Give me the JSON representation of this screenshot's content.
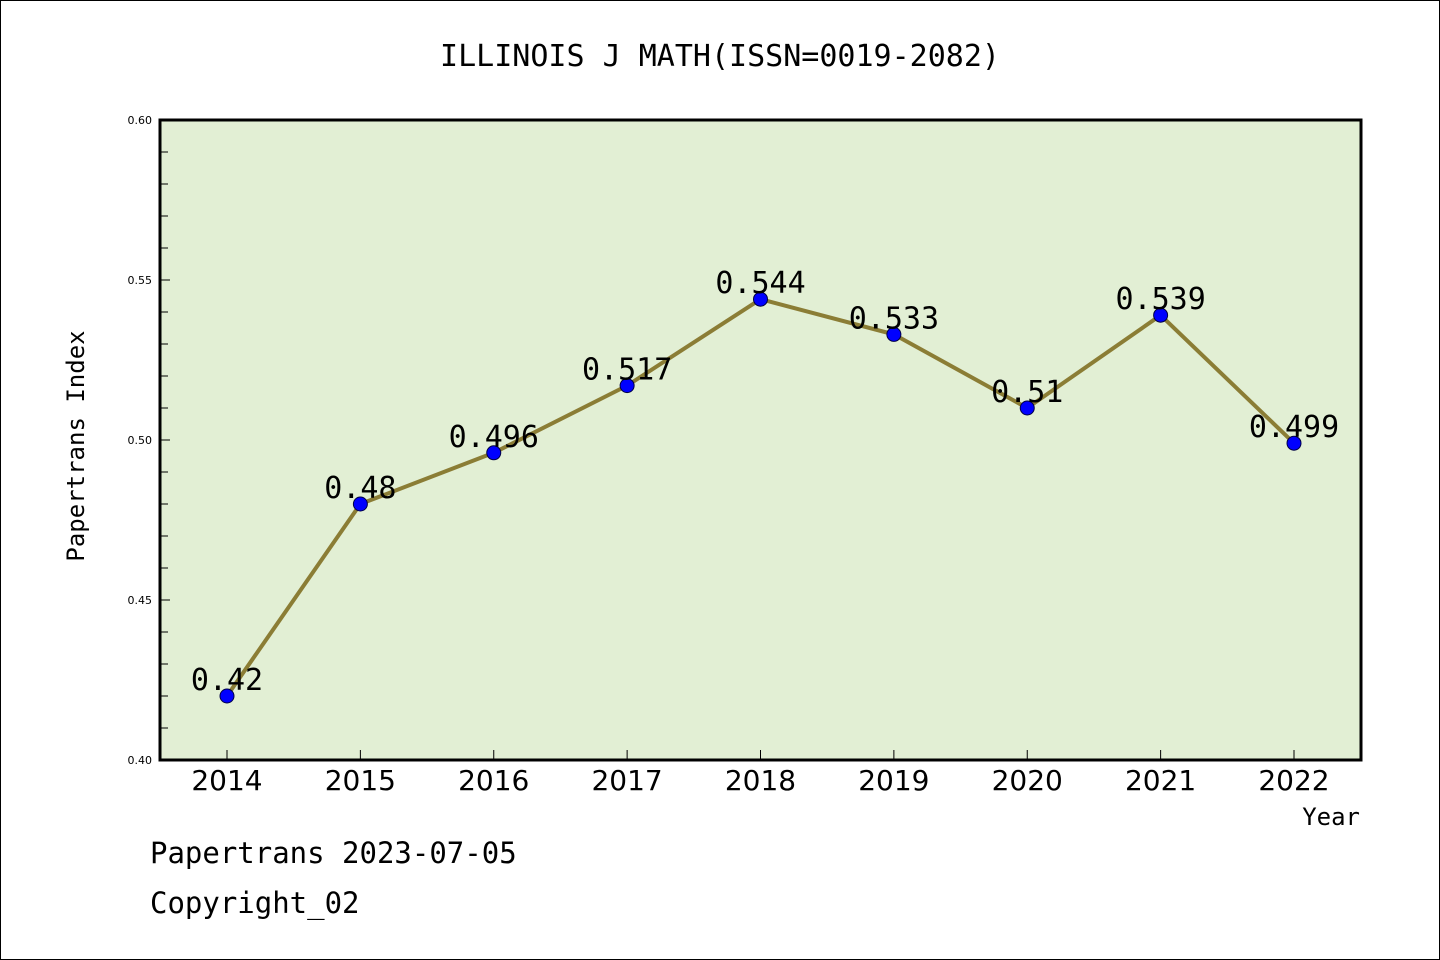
{
  "chart_data": {
    "type": "line",
    "title": "ILLINOIS J MATH(ISSN=0019-2082)",
    "xlabel": "Year",
    "ylabel": "Papertrans Index",
    "categories": [
      "2014",
      "2015",
      "2016",
      "2017",
      "2018",
      "2019",
      "2020",
      "2021",
      "2022"
    ],
    "values": [
      0.42,
      0.48,
      0.496,
      0.517,
      0.544,
      0.533,
      0.51,
      0.539,
      0.499
    ],
    "data_labels": [
      "0.42",
      "0.48",
      "0.496",
      "0.517",
      "0.544",
      "0.533",
      "0.51",
      "0.539",
      "0.499"
    ],
    "ylim": [
      0.4,
      0.6
    ],
    "yticks": [
      "0.40",
      "0.45",
      "0.50",
      "0.55",
      "0.60"
    ],
    "grid": false,
    "colors": {
      "plot_background": "#e2efd4",
      "line": "#8b7d35",
      "marker": "#0000ff"
    }
  },
  "footer": {
    "date_line": "Papertrans 2023-07-05",
    "copyright": "Copyright_02"
  }
}
